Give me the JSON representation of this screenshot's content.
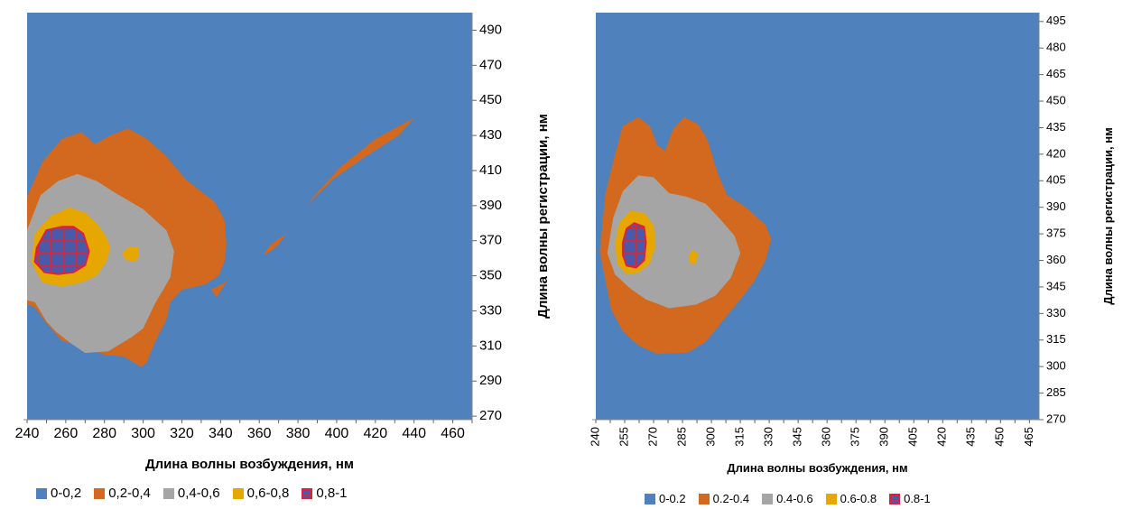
{
  "chart_data": [
    {
      "type": "contour",
      "xlabel": "Длина волны возбуждения, нм",
      "ylabel": "Длина волны регистрации, нм",
      "x_ticks": [
        240,
        260,
        280,
        300,
        320,
        340,
        360,
        380,
        400,
        420,
        440,
        460
      ],
      "y_ticks": [
        270,
        290,
        310,
        330,
        350,
        370,
        390,
        410,
        430,
        450,
        470,
        490
      ],
      "xlim": [
        240,
        470
      ],
      "ylim": [
        268,
        500
      ],
      "levels": [
        {
          "label": "0-0,2",
          "color": "#4f81bd"
        },
        {
          "label": "0,2-0,4",
          "color": "#d2691e"
        },
        {
          "label": "0,4-0,6",
          "color": "#a5a5a5"
        },
        {
          "label": "0,6-0,8",
          "color": "#e6a800"
        },
        {
          "label": "0,8-1",
          "color": "#4a5aa8",
          "pattern": "grid",
          "border": "#e0203a"
        }
      ],
      "regions": [
        {
          "level": 1,
          "points": [
            [
              240,
              395
            ],
            [
              248,
              415
            ],
            [
              258,
              428
            ],
            [
              268,
              432
            ],
            [
              275,
              425
            ],
            [
              283,
              430
            ],
            [
              292,
              434
            ],
            [
              302,
              428
            ],
            [
              312,
              418
            ],
            [
              322,
              405
            ],
            [
              330,
              398
            ],
            [
              337,
              392
            ],
            [
              342,
              382
            ],
            [
              343,
              368
            ],
            [
              342,
              358
            ],
            [
              339,
              350
            ],
            [
              332,
              345
            ],
            [
              320,
              342
            ],
            [
              314,
              335
            ],
            [
              312,
              325
            ],
            [
              306,
              312
            ],
            [
              302,
              301
            ],
            [
              299,
              298
            ],
            [
              290,
              304
            ],
            [
              280,
              305
            ],
            [
              270,
              309
            ],
            [
              258,
              313
            ],
            [
              250,
              323
            ],
            [
              244,
              332
            ],
            [
              240,
              334
            ]
          ]
        },
        {
          "level": 1,
          "points": [
            [
              335,
              342
            ],
            [
              342,
              346
            ],
            [
              352,
              356
            ],
            [
              349,
              353
            ],
            [
              344,
              348
            ],
            [
              338,
              338
            ]
          ]
        },
        {
          "level": 1,
          "points": [
            [
              362,
              362
            ],
            [
              366,
              368
            ],
            [
              374,
              374
            ],
            [
              370,
              368
            ],
            [
              366,
              364
            ]
          ]
        },
        {
          "level": 1,
          "points": [
            [
              384,
              390
            ],
            [
              392,
              400
            ],
            [
              402,
              412
            ],
            [
              420,
              428
            ],
            [
              440,
              440
            ],
            [
              432,
              430
            ],
            [
              415,
              418
            ],
            [
              398,
              405
            ],
            [
              388,
              394
            ]
          ]
        },
        {
          "level": 2,
          "points": [
            [
              240,
              376
            ],
            [
              247,
              396
            ],
            [
              256,
              404
            ],
            [
              266,
              408
            ],
            [
              276,
              404
            ],
            [
              286,
              397
            ],
            [
              300,
              388
            ],
            [
              312,
              376
            ],
            [
              316,
              364
            ],
            [
              314,
              349
            ],
            [
              306,
              334
            ],
            [
              300,
              320
            ],
            [
              294,
              315
            ],
            [
              282,
              307
            ],
            [
              270,
              306
            ],
            [
              262,
              312
            ],
            [
              255,
              318
            ],
            [
              250,
              324
            ],
            [
              244,
              335
            ],
            [
              240,
              336
            ]
          ]
        },
        {
          "level": 3,
          "points": [
            [
              242,
              358
            ],
            [
              244,
              374
            ],
            [
              252,
              384
            ],
            [
              262,
              389
            ],
            [
              270,
              386
            ],
            [
              276,
              380
            ],
            [
              281,
              372
            ],
            [
              283,
              366
            ],
            [
              281,
              358
            ],
            [
              276,
              350
            ],
            [
              268,
              346
            ],
            [
              258,
              344
            ],
            [
              248,
              346
            ]
          ]
        },
        {
          "level": 3,
          "points": [
            [
              292,
              366
            ],
            [
              297,
              367
            ],
            [
              298,
              362
            ],
            [
              296,
              358
            ],
            [
              291,
              359
            ],
            [
              289,
              363
            ]
          ]
        },
        {
          "level": 4,
          "points": [
            [
              245,
              366
            ],
            [
              250,
              376
            ],
            [
              258,
              378
            ],
            [
              264,
              378
            ],
            [
              269,
              374
            ],
            [
              272,
              364
            ],
            [
              270,
              356
            ],
            [
              264,
              352
            ],
            [
              256,
              351
            ],
            [
              249,
              352
            ],
            [
              244,
              358
            ]
          ]
        }
      ]
    },
    {
      "type": "contour",
      "xlabel": "Длина волны возбуждения, нм",
      "ylabel": "Длина волны регистрации, нм",
      "x_ticks": [
        240,
        255,
        270,
        285,
        300,
        315,
        330,
        345,
        360,
        375,
        390,
        405,
        420,
        435,
        450,
        465
      ],
      "y_ticks": [
        270,
        285,
        300,
        315,
        330,
        345,
        360,
        375,
        390,
        405,
        420,
        435,
        450,
        465,
        480,
        495
      ],
      "xlim": [
        240,
        470
      ],
      "ylim": [
        270,
        500
      ],
      "levels": [
        {
          "label": "0-0.2",
          "color": "#4f81bd"
        },
        {
          "label": "0.2-0.4",
          "color": "#d2691e"
        },
        {
          "label": "0.4-0.6",
          "color": "#a5a5a5"
        },
        {
          "label": "0.6-0.8",
          "color": "#e6a800"
        },
        {
          "label": "0.8-1",
          "color": "#4a5aa8",
          "pattern": "grid",
          "border": "#e0203a"
        }
      ],
      "regions": [
        {
          "level": 1,
          "points": [
            [
              242,
              365
            ],
            [
              245,
              398
            ],
            [
              250,
              420
            ],
            [
              254,
              436
            ],
            [
              262,
              441
            ],
            [
              268,
              436
            ],
            [
              272,
              425
            ],
            [
              276,
              422
            ],
            [
              280,
              434
            ],
            [
              286,
              441
            ],
            [
              293,
              437
            ],
            [
              298,
              428
            ],
            [
              303,
              410
            ],
            [
              308,
              397
            ],
            [
              318,
              390
            ],
            [
              328,
              380
            ],
            [
              331,
              372
            ],
            [
              328,
              360
            ],
            [
              322,
              348
            ],
            [
              315,
              338
            ],
            [
              306,
              326
            ],
            [
              297,
              314
            ],
            [
              288,
              308
            ],
            [
              272,
              307
            ],
            [
              262,
              312
            ],
            [
              254,
              320
            ],
            [
              248,
              332
            ]
          ]
        },
        {
          "level": 2,
          "points": [
            [
              246,
              364
            ],
            [
              249,
              384
            ],
            [
              254,
              399
            ],
            [
              262,
              408
            ],
            [
              270,
              407
            ],
            [
              278,
              398
            ],
            [
              287,
              396
            ],
            [
              297,
              392
            ],
            [
              304,
              384
            ],
            [
              312,
              374
            ],
            [
              315,
              364
            ],
            [
              310,
              350
            ],
            [
              302,
              340
            ],
            [
              292,
              335
            ],
            [
              278,
              333
            ],
            [
              266,
              338
            ],
            [
              258,
              344
            ],
            [
              250,
              352
            ]
          ]
        },
        {
          "level": 3,
          "points": [
            [
              250,
              370
            ],
            [
              252,
              381
            ],
            [
              258,
              388
            ],
            [
              265,
              387
            ],
            [
              270,
              380
            ],
            [
              271,
              368
            ],
            [
              268,
              358
            ],
            [
              262,
              353
            ],
            [
              256,
              352
            ],
            [
              251,
              358
            ]
          ]
        },
        {
          "level": 3,
          "points": [
            [
              288,
              362
            ],
            [
              290,
              366
            ],
            [
              293,
              364
            ],
            [
              292,
              358
            ],
            [
              289,
              358
            ]
          ]
        },
        {
          "level": 4,
          "points": [
            [
              254,
              370
            ],
            [
              256,
              378
            ],
            [
              260,
              381
            ],
            [
              265,
              379
            ],
            [
              266,
              370
            ],
            [
              265,
              360
            ],
            [
              261,
              356
            ],
            [
              256,
              357
            ],
            [
              254,
              363
            ]
          ]
        }
      ]
    }
  ]
}
